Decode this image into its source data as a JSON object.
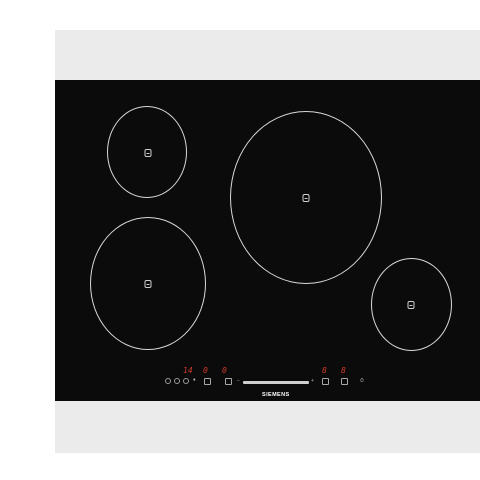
{
  "brand": "SIEMENS",
  "colors": {
    "background": "#ffffff",
    "frame": "#ebebeb",
    "glass": "#0b0b0b",
    "zone_line": "#d8d8d8",
    "display": "#d23a2a"
  },
  "cooking_zones": [
    {
      "name": "rear-left"
    },
    {
      "name": "front-left"
    },
    {
      "name": "center"
    },
    {
      "name": "front-right"
    }
  ],
  "displays": [
    "14",
    "0",
    "0",
    "8",
    "8"
  ],
  "controls": [
    "power-icon",
    "lock-icon",
    "timer-icon",
    "wipe-icon"
  ]
}
